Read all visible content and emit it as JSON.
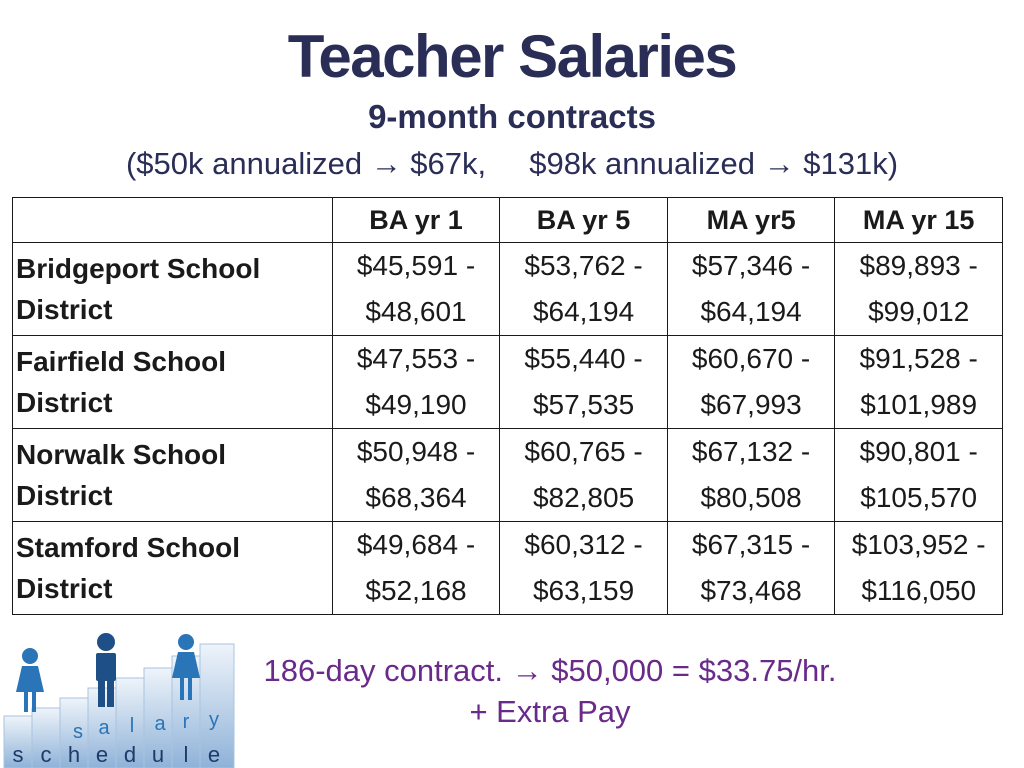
{
  "title": "Teacher Salaries",
  "subtitle": "9-month contracts",
  "note": "($50k annualized → $67k,     $98k annualized → $131k)",
  "table": {
    "headers": [
      "BA yr 1",
      "BA yr 5",
      "MA yr5",
      "MA yr 15"
    ],
    "rows": [
      {
        "district_line1": "Bridgeport School",
        "district_line2": "District",
        "cells": [
          [
            "$45,591 -",
            "$48,601"
          ],
          [
            "$53,762 -",
            "$64,194"
          ],
          [
            "$57,346 -",
            "$64,194"
          ],
          [
            "$89,893 -",
            "$99,012"
          ]
        ]
      },
      {
        "district_line1": "Fairfield School",
        "district_line2": "District",
        "cells": [
          [
            "$47,553 -",
            "$49,190"
          ],
          [
            "$55,440 -",
            "$57,535"
          ],
          [
            "$60,670 -",
            "$67,993"
          ],
          [
            "$91,528 -",
            "$101,989"
          ]
        ]
      },
      {
        "district_line1": "Norwalk School",
        "district_line2": "District",
        "cells": [
          [
            "$50,948 -",
            "$68,364"
          ],
          [
            "$60,765 -",
            "$82,805"
          ],
          [
            "$67,132 -",
            "$80,508"
          ],
          [
            "$90,801 -",
            "$105,570"
          ]
        ]
      },
      {
        "district_line1": "Stamford School",
        "district_line2": "District",
        "cells": [
          [
            "$49,684 -",
            "$52,168"
          ],
          [
            "$60,312 -",
            "$63,159"
          ],
          [
            "$67,315 -",
            "$73,468"
          ],
          [
            "$103,952 -",
            "$116,050"
          ]
        ]
      }
    ]
  },
  "footer": {
    "line1": "186-day contract. → $50,000 = $33.75/hr.",
    "line2": "+ Extra Pay"
  },
  "logo": {
    "word_top": [
      "s",
      "a",
      "l",
      "a",
      "r",
      "y"
    ],
    "word_bottom": [
      "s",
      "c",
      "h",
      "e",
      "d",
      "u",
      "l",
      "e"
    ],
    "colors": {
      "figure": "#2a74b8",
      "blocks_light": "#d6e4f2",
      "blocks_dark": "#8fb2d8",
      "letters_top": "#2a74b8",
      "letters_bottom": "#1e3a6a"
    }
  },
  "colors": {
    "title": "#2a2e56",
    "footer": "#6a2a8a"
  }
}
